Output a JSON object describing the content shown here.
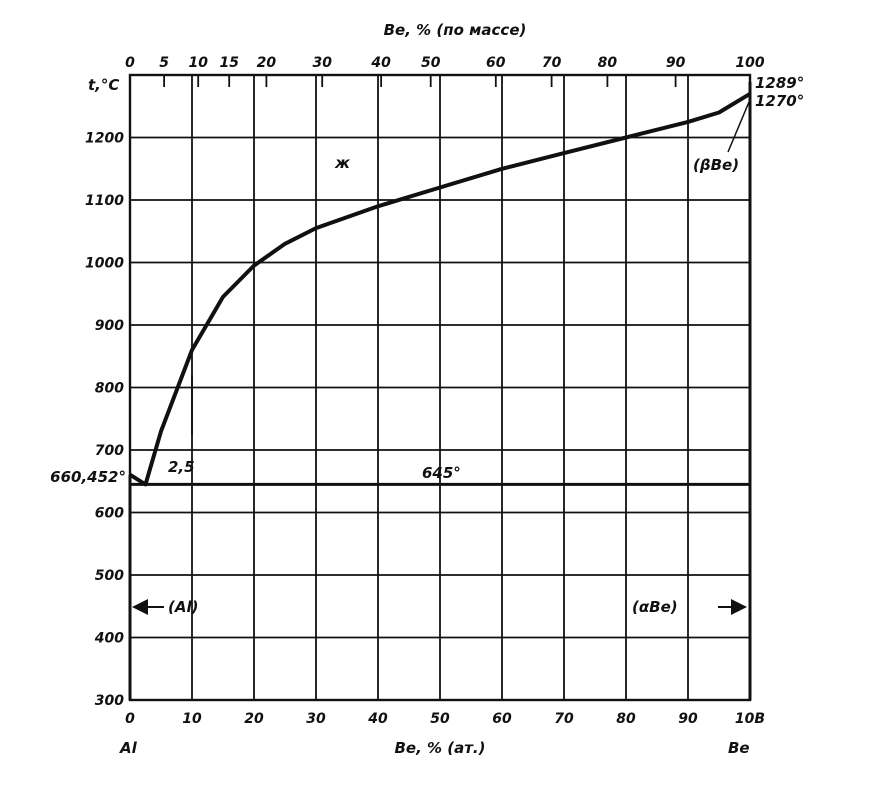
{
  "chart_data": {
    "type": "line",
    "title": "",
    "xlabel": "Be, % (ат.)",
    "x2label": "Be, % (по массе)",
    "ylabel": "t,°C",
    "xlim": [
      0,
      100
    ],
    "ylim": [
      300,
      1300
    ],
    "grid": true,
    "x_ticks": [
      "0",
      "10",
      "20",
      "30",
      "40",
      "50",
      "60",
      "70",
      "80",
      "90",
      "10В"
    ],
    "x_tick_values": [
      0,
      10,
      20,
      30,
      40,
      50,
      60,
      70,
      80,
      90,
      100
    ],
    "x2_ticks": [
      "0",
      "5",
      "10",
      "15",
      "20",
      "30",
      "40",
      "50",
      "60",
      "70",
      "80",
      "90",
      "100"
    ],
    "x2_tick_at_at_pct": [
      0,
      5.5,
      11,
      16,
      22,
      31,
      40.5,
      48.5,
      59,
      68,
      77,
      88,
      100
    ],
    "y_ticks": [
      "300",
      "400",
      "500",
      "600",
      "700",
      "800",
      "900",
      "1000",
      "1100",
      "1200"
    ],
    "y_tick_values": [
      300,
      400,
      500,
      600,
      700,
      800,
      900,
      1000,
      1100,
      1200
    ],
    "components": {
      "left": "Al",
      "right": "Be"
    },
    "series": [
      {
        "kind": "liquidus",
        "points": [
          [
            0,
            660.452
          ],
          [
            2.5,
            645
          ],
          [
            5,
            730
          ],
          [
            10,
            860
          ],
          [
            15,
            945
          ],
          [
            20,
            995
          ],
          [
            25,
            1030
          ],
          [
            30,
            1055
          ],
          [
            40,
            1090
          ],
          [
            50,
            1120
          ],
          [
            60,
            1150
          ],
          [
            70,
            1175
          ],
          [
            80,
            1200
          ],
          [
            90,
            1225
          ],
          [
            95,
            1240
          ],
          [
            100,
            1270
          ]
        ]
      },
      {
        "kind": "eutectic-isotherm",
        "points": [
          [
            0,
            645
          ],
          [
            100,
            645
          ]
        ]
      },
      {
        "kind": "al-solvus",
        "points": [
          [
            0,
            300
          ],
          [
            0,
            660.452
          ]
        ]
      },
      {
        "kind": "be-solvus",
        "points": [
          [
            100,
            300
          ],
          [
            100,
            1289
          ]
        ]
      }
    ],
    "annotations": {
      "liquid": "ж",
      "al_melt": "660,452°",
      "eutectic_comp": "2,5",
      "eutectic_temp": "645°",
      "be_melt": "1289°",
      "be_transform": "1270°",
      "beta_be": "(βBe)",
      "al_phase": "(Al)",
      "alpha_be": "(αBe)"
    }
  }
}
